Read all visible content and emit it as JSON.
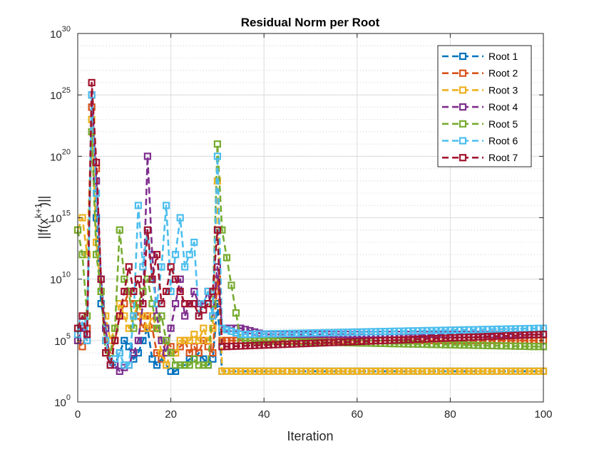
{
  "chart_data": {
    "type": "line",
    "title": "Residual Norm per Root",
    "xlabel": "Iteration",
    "ylabel": "||f(x_i^{k+1})||",
    "ylabel_parts": {
      "base": "||f(x",
      "sub": "i",
      "sup": "k+1",
      "close": ")||"
    },
    "xlim": [
      0,
      100
    ],
    "ylim": [
      1,
      1e+30
    ],
    "yscale": "log",
    "grid": true,
    "legend_location": "top-right",
    "x_ticks": [
      "0",
      "20",
      "40",
      "60",
      "80",
      "100"
    ],
    "x_tick_values": [
      0,
      20,
      40,
      60,
      80,
      100
    ],
    "y_tick_values": [
      1,
      100000.0,
      10000000000.0,
      1000000000000000.0,
      1e+20,
      1e+25,
      1e+30
    ],
    "y_tick_labels": [
      {
        "base": "10",
        "exp": "0"
      },
      {
        "base": "10",
        "exp": "5"
      },
      {
        "base": "10",
        "exp": "10"
      },
      {
        "base": "10",
        "exp": "15"
      },
      {
        "base": "10",
        "exp": "20"
      },
      {
        "base": "10",
        "exp": "25"
      },
      {
        "base": "10",
        "exp": "30"
      }
    ],
    "series_log10": [
      {
        "name": "Root 1",
        "color": "#0072BD",
        "points": [
          [
            0,
            6
          ],
          [
            1,
            6
          ],
          [
            2,
            6
          ],
          [
            3,
            24
          ],
          [
            4,
            15
          ],
          [
            5,
            8
          ],
          [
            6,
            6
          ],
          [
            7,
            3
          ],
          [
            8,
            3
          ],
          [
            9,
            4
          ],
          [
            10,
            5
          ],
          [
            11,
            4.5
          ],
          [
            12,
            3.5
          ],
          [
            13,
            4
          ],
          [
            14,
            5
          ],
          [
            15,
            6
          ],
          [
            16,
            3.5
          ],
          [
            17,
            3
          ],
          [
            18,
            3.5
          ],
          [
            19,
            3
          ],
          [
            20,
            2.5
          ],
          [
            21,
            2.5
          ],
          [
            22,
            3
          ],
          [
            23,
            3
          ],
          [
            24,
            3.5
          ],
          [
            25,
            3.5
          ],
          [
            26,
            4
          ],
          [
            27,
            3.5
          ],
          [
            28,
            3
          ],
          [
            29,
            3.5
          ],
          [
            30,
            8
          ],
          [
            31,
            2.5
          ],
          [
            35,
            2.5
          ],
          [
            100,
            2.5
          ]
        ]
      },
      {
        "name": "Root 2",
        "color": "#D95319",
        "points": [
          [
            0,
            5
          ],
          [
            1,
            4.5
          ],
          [
            2,
            6
          ],
          [
            3,
            24
          ],
          [
            4,
            19
          ],
          [
            5,
            10
          ],
          [
            6,
            5
          ],
          [
            7,
            4
          ],
          [
            8,
            5
          ],
          [
            9,
            7
          ],
          [
            10,
            8
          ],
          [
            11,
            9
          ],
          [
            12,
            8
          ],
          [
            13,
            7
          ],
          [
            14,
            6
          ],
          [
            15,
            7
          ],
          [
            16,
            6
          ],
          [
            17,
            4
          ],
          [
            18,
            3.5
          ],
          [
            19,
            5
          ],
          [
            20,
            4.5
          ],
          [
            21,
            4
          ],
          [
            22,
            4.5
          ],
          [
            23,
            5
          ],
          [
            24,
            4
          ],
          [
            25,
            4.5
          ],
          [
            26,
            4
          ],
          [
            27,
            5
          ],
          [
            28,
            4.5
          ],
          [
            29,
            4
          ],
          [
            30,
            10
          ],
          [
            31,
            5
          ],
          [
            35,
            5
          ],
          [
            100,
            5
          ]
        ]
      },
      {
        "name": "Root 3",
        "color": "#EDB120",
        "points": [
          [
            0,
            14
          ],
          [
            1,
            15
          ],
          [
            2,
            12
          ],
          [
            3,
            23
          ],
          [
            4,
            13
          ],
          [
            5,
            9
          ],
          [
            6,
            7
          ],
          [
            7,
            5
          ],
          [
            8,
            6
          ],
          [
            9,
            8
          ],
          [
            10,
            7
          ],
          [
            11,
            6
          ],
          [
            12,
            7
          ],
          [
            13,
            8
          ],
          [
            14,
            7
          ],
          [
            15,
            6
          ],
          [
            16,
            7
          ],
          [
            17,
            6
          ],
          [
            18,
            4
          ],
          [
            19,
            3
          ],
          [
            20,
            4
          ],
          [
            21,
            4
          ],
          [
            22,
            5
          ],
          [
            23,
            5
          ],
          [
            24,
            5
          ],
          [
            25,
            5.5
          ],
          [
            26,
            5
          ],
          [
            27,
            6
          ],
          [
            28,
            5
          ],
          [
            29,
            6
          ],
          [
            30,
            18
          ],
          [
            31,
            2.5
          ],
          [
            35,
            2.5
          ],
          [
            100,
            2.5
          ]
        ]
      },
      {
        "name": "Root 4",
        "color": "#7E2F8E",
        "points": [
          [
            0,
            5
          ],
          [
            1,
            6
          ],
          [
            2,
            5
          ],
          [
            3,
            25
          ],
          [
            4,
            18
          ],
          [
            5,
            10
          ],
          [
            6,
            6
          ],
          [
            7,
            3
          ],
          [
            8,
            3
          ],
          [
            9,
            2.5
          ],
          [
            10,
            2.8
          ],
          [
            11,
            3
          ],
          [
            12,
            4
          ],
          [
            13,
            5
          ],
          [
            14,
            8
          ],
          [
            15,
            20
          ],
          [
            16,
            12
          ],
          [
            17,
            7
          ],
          [
            18,
            5
          ],
          [
            19,
            4
          ],
          [
            20,
            6
          ],
          [
            21,
            8
          ],
          [
            22,
            10
          ],
          [
            23,
            7
          ],
          [
            24,
            8
          ],
          [
            25,
            9
          ],
          [
            26,
            8
          ],
          [
            27,
            8
          ],
          [
            28,
            9
          ],
          [
            29,
            7
          ],
          [
            30,
            11
          ],
          [
            31,
            6
          ],
          [
            35,
            6
          ],
          [
            40,
            5.5
          ],
          [
            100,
            5.5
          ]
        ]
      },
      {
        "name": "Root 5",
        "color": "#77AC30",
        "points": [
          [
            0,
            14
          ],
          [
            1,
            12
          ],
          [
            2,
            7
          ],
          [
            3,
            22
          ],
          [
            4,
            12
          ],
          [
            5,
            9
          ],
          [
            6,
            4
          ],
          [
            7,
            4
          ],
          [
            8,
            6
          ],
          [
            9,
            14
          ],
          [
            10,
            10
          ],
          [
            11,
            9
          ],
          [
            12,
            6
          ],
          [
            13,
            8
          ],
          [
            14,
            9
          ],
          [
            15,
            10
          ],
          [
            16,
            8
          ],
          [
            17,
            6
          ],
          [
            18,
            7
          ],
          [
            19,
            5
          ],
          [
            20,
            4
          ],
          [
            21,
            3
          ],
          [
            22,
            3
          ],
          [
            23,
            3
          ],
          [
            24,
            3
          ],
          [
            25,
            3.5
          ],
          [
            26,
            3
          ],
          [
            27,
            3
          ],
          [
            28,
            3
          ],
          [
            29,
            8
          ],
          [
            30,
            21
          ],
          [
            31,
            14
          ],
          [
            35,
            5
          ],
          [
            100,
            4.5
          ]
        ]
      },
      {
        "name": "Root 6",
        "color": "#4DBEEE",
        "points": [
          [
            0,
            5.5
          ],
          [
            1,
            6.5
          ],
          [
            2,
            5
          ],
          [
            3,
            25
          ],
          [
            4,
            17
          ],
          [
            5,
            10
          ],
          [
            6,
            5
          ],
          [
            7,
            3
          ],
          [
            8,
            3.5
          ],
          [
            9,
            4
          ],
          [
            10,
            3
          ],
          [
            11,
            3
          ],
          [
            12,
            7
          ],
          [
            13,
            16
          ],
          [
            14,
            11
          ],
          [
            15,
            14
          ],
          [
            16,
            10
          ],
          [
            17,
            8
          ],
          [
            18,
            11
          ],
          [
            19,
            16
          ],
          [
            20,
            9
          ],
          [
            21,
            12
          ],
          [
            22,
            15
          ],
          [
            23,
            11
          ],
          [
            24,
            12
          ],
          [
            25,
            13
          ],
          [
            26,
            7
          ],
          [
            27,
            8
          ],
          [
            28,
            9
          ],
          [
            29,
            7
          ],
          [
            30,
            20
          ],
          [
            31,
            6
          ],
          [
            35,
            5.5
          ],
          [
            100,
            6
          ]
        ]
      },
      {
        "name": "Root 7",
        "color": "#A2142F",
        "points": [
          [
            0,
            6
          ],
          [
            1,
            7
          ],
          [
            2,
            5.5
          ],
          [
            3,
            26
          ],
          [
            4,
            19.5
          ],
          [
            5,
            10
          ],
          [
            6,
            4
          ],
          [
            7,
            3
          ],
          [
            8,
            5
          ],
          [
            9,
            7
          ],
          [
            10,
            9
          ],
          [
            11,
            11
          ],
          [
            12,
            9
          ],
          [
            13,
            10
          ],
          [
            14,
            8
          ],
          [
            15,
            14
          ],
          [
            16,
            10
          ],
          [
            17,
            12
          ],
          [
            18,
            8
          ],
          [
            19,
            9
          ],
          [
            20,
            11
          ],
          [
            21,
            10
          ],
          [
            22,
            9
          ],
          [
            23,
            8
          ],
          [
            24,
            8
          ],
          [
            25,
            8
          ],
          [
            26,
            7
          ],
          [
            27,
            7.5
          ],
          [
            28,
            8
          ],
          [
            29,
            9
          ],
          [
            30,
            14
          ],
          [
            31,
            4.5
          ],
          [
            100,
            5.5
          ]
        ]
      }
    ]
  }
}
